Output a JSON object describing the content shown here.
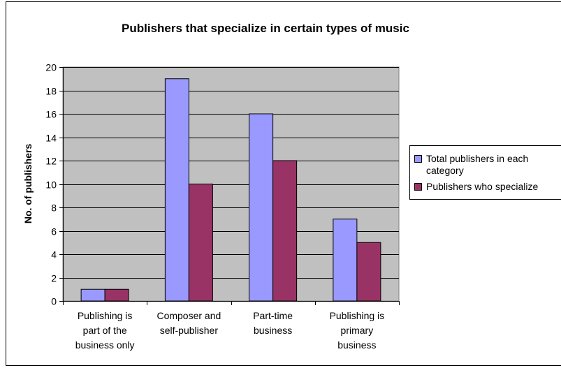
{
  "chart_data": {
    "type": "bar",
    "title": "Publishers that specialize in certain types of music",
    "ylabel": "No. of publishers",
    "xlabel": "",
    "ylim": [
      0,
      20
    ],
    "ytick_step": 2,
    "grid": true,
    "legend_position": "right",
    "categories": [
      [
        "Publishing is",
        "part of the",
        "business only"
      ],
      [
        "Composer and",
        "self-publisher"
      ],
      [
        "Part-time",
        "business"
      ],
      [
        "Publishing is",
        "primary",
        "business"
      ]
    ],
    "series": [
      {
        "name": "Total publishers in each category",
        "values": [
          1,
          19,
          16,
          7
        ],
        "color": "#9999ff"
      },
      {
        "name": "Publishers who specialize",
        "values": [
          1,
          10,
          12,
          5
        ],
        "color": "#993366"
      }
    ],
    "plot_background": "#c0c0c0"
  }
}
